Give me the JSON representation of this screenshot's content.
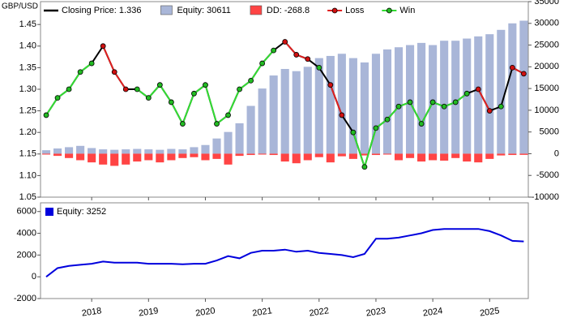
{
  "chart_data": [
    {
      "type": "combo",
      "y_label": "GBP/USD",
      "x": [
        2017.2,
        2017.4,
        2017.6,
        2017.8,
        2018,
        2018.2,
        2018.4,
        2018.6,
        2018.8,
        2019,
        2019.2,
        2019.4,
        2019.6,
        2019.8,
        2020,
        2020.2,
        2020.4,
        2020.6,
        2020.8,
        2021,
        2021.2,
        2021.4,
        2021.6,
        2021.8,
        2022,
        2022.2,
        2022.4,
        2022.6,
        2022.8,
        2023,
        2023.2,
        2023.4,
        2023.6,
        2023.8,
        2024,
        2024.2,
        2024.4,
        2024.6,
        2024.8,
        2025,
        2025.2,
        2025.4,
        2025.6
      ],
      "xlim": [
        2017.1,
        2025.68
      ],
      "xticks": [
        2018,
        2019,
        2020,
        2021,
        2022,
        2023,
        2024,
        2025
      ],
      "ylim": [
        1.05,
        1.503
      ],
      "yticks": [
        1.05,
        {
          "value": 1.1,
          "label": "1.10"
        },
        1.15,
        {
          "value": 1.2,
          "label": "1.20"
        },
        1.25,
        {
          "value": 1.3,
          "label": "1.30"
        },
        1.35,
        {
          "value": 1.4,
          "label": "1.40"
        },
        1.45
      ],
      "y2lim": [
        -10000,
        35000
      ],
      "y2ticks": [
        -10000,
        -5000,
        0,
        5000,
        10000,
        15000,
        20000,
        25000,
        30000,
        35000
      ],
      "series": [
        {
          "name": "Closing Price: 1.336",
          "type": "line",
          "color": "#000000",
          "values": [
            1.24,
            1.28,
            1.3,
            1.34,
            1.36,
            1.4,
            1.34,
            1.3,
            1.3,
            1.28,
            1.31,
            1.27,
            1.22,
            1.29,
            1.31,
            1.22,
            1.24,
            1.3,
            1.32,
            1.36,
            1.39,
            1.41,
            1.38,
            1.37,
            1.35,
            1.31,
            1.24,
            1.2,
            1.12,
            1.21,
            1.23,
            1.26,
            1.27,
            1.22,
            1.27,
            1.26,
            1.27,
            1.29,
            1.3,
            1.25,
            1.26,
            1.35,
            1.336
          ]
        },
        {
          "name": "Equity: 30611",
          "type": "bar",
          "axis": "y2",
          "color": "#a9b6d8",
          "values": [
            800,
            1200,
            1500,
            1800,
            1300,
            1000,
            900,
            1000,
            1100,
            1000,
            900,
            1100,
            1000,
            1500,
            2000,
            3500,
            5000,
            7000,
            11000,
            15000,
            18000,
            19500,
            19000,
            20000,
            22000,
            22500,
            23000,
            22000,
            21000,
            23000,
            24000,
            24500,
            25000,
            25500,
            25000,
            26000,
            26000,
            26500,
            27000,
            27500,
            28500,
            30000,
            30611
          ]
        },
        {
          "name": "DD: -268.8",
          "type": "bar",
          "axis": "y2",
          "color": "#ff4444",
          "values": [
            -200,
            -500,
            -1000,
            -1500,
            -2000,
            -2500,
            -2800,
            -2500,
            -1800,
            -1500,
            -2000,
            -1500,
            -1000,
            -800,
            -1500,
            -1200,
            -2500,
            -500,
            -300,
            -200,
            -300,
            -1800,
            -2200,
            -1500,
            -800,
            -2000,
            -600,
            -1200,
            -400,
            -300,
            -200,
            -1500,
            -1000,
            -1800,
            -1500,
            -1600,
            -1000,
            -1800,
            -2000,
            -1200,
            -400,
            -300,
            -268.8
          ]
        },
        {
          "name": "Loss",
          "type": "markers",
          "color": "#e02020",
          "marker_color": "#d01010",
          "values": [
            null,
            null,
            null,
            null,
            null,
            1.4,
            1.34,
            1.3,
            null,
            null,
            null,
            null,
            null,
            null,
            null,
            null,
            null,
            null,
            null,
            null,
            null,
            1.41,
            1.38,
            1.37,
            null,
            1.31,
            1.24,
            null,
            null,
            null,
            null,
            null,
            null,
            null,
            null,
            null,
            null,
            null,
            1.3,
            1.25,
            null,
            1.35,
            1.336
          ]
        },
        {
          "name": "Win",
          "type": "markers",
          "color": "#33dd33",
          "marker_color": "#22bb22",
          "values": [
            1.24,
            1.28,
            1.3,
            1.34,
            1.36,
            null,
            null,
            null,
            1.3,
            1.28,
            1.31,
            1.27,
            1.22,
            1.29,
            1.31,
            1.22,
            1.24,
            1.3,
            1.32,
            1.36,
            1.39,
            null,
            null,
            null,
            1.35,
            null,
            null,
            1.2,
            1.12,
            1.21,
            1.23,
            1.26,
            1.27,
            1.22,
            1.27,
            1.26,
            1.27,
            1.29,
            null,
            null,
            1.26,
            null,
            null
          ]
        }
      ]
    },
    {
      "type": "line",
      "x": [
        2017.2,
        2017.4,
        2017.6,
        2017.8,
        2018,
        2018.2,
        2018.4,
        2018.6,
        2018.8,
        2019,
        2019.2,
        2019.4,
        2019.6,
        2019.8,
        2020,
        2020.2,
        2020.4,
        2020.6,
        2020.8,
        2021,
        2021.2,
        2021.4,
        2021.6,
        2021.8,
        2022,
        2022.2,
        2022.4,
        2022.6,
        2022.8,
        2023,
        2023.2,
        2023.4,
        2023.6,
        2023.8,
        2024,
        2024.2,
        2024.4,
        2024.6,
        2024.8,
        2025,
        2025.2,
        2025.4,
        2025.6
      ],
      "xlim": [
        2017.1,
        2025.68
      ],
      "xticks": [
        2018,
        2019,
        2020,
        2021,
        2022,
        2023,
        2024,
        2025
      ],
      "ylim": [
        -2000,
        6800
      ],
      "yticks": [
        -2000,
        0,
        2000,
        4000,
        6000
      ],
      "series": [
        {
          "name": "Equity: 3252",
          "color": "#0000dd",
          "values": [
            0,
            800,
            1000,
            1100,
            1200,
            1400,
            1300,
            1300,
            1300,
            1200,
            1200,
            1200,
            1150,
            1200,
            1200,
            1500,
            1900,
            1700,
            2200,
            2400,
            2400,
            2500,
            2300,
            2400,
            2200,
            2100,
            2000,
            1800,
            2100,
            3500,
            3500,
            3600,
            3800,
            4000,
            4300,
            4400,
            4400,
            4400,
            4400,
            4200,
            3800,
            3300,
            3252
          ]
        }
      ]
    }
  ]
}
